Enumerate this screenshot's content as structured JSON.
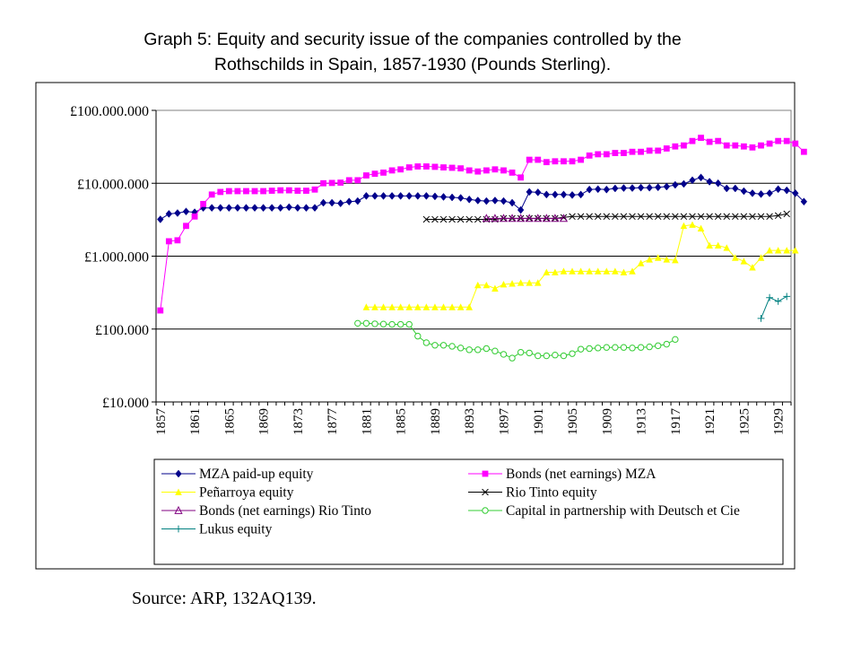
{
  "title_lines": [
    "Graph 5: Equity and security issue of the companies controlled by the",
    "Rothschilds in Spain, 1857-1930 (Pounds Sterling)."
  ],
  "source": "Source: ARP, 132AQ139.",
  "chart_data": {
    "type": "line",
    "title": "Graph 5: Equity and security issue of the companies controlled by the Rothschilds in Spain, 1857-1930 (Pounds Sterling).",
    "yscale": "log",
    "ylim": [
      10000,
      100000000
    ],
    "xlim": [
      1857,
      1930
    ],
    "y_ticks": [
      {
        "value": 100000000,
        "label": "£100.000.000"
      },
      {
        "value": 10000000,
        "label": "£10.000.000"
      },
      {
        "value": 1000000,
        "label": "£1.000.000"
      },
      {
        "value": 100000,
        "label": "£100.000"
      },
      {
        "value": 10000,
        "label": "£10.000"
      }
    ],
    "x_tick_labels": [
      "1857",
      "1861",
      "1865",
      "1869",
      "1873",
      "1877",
      "1881",
      "1885",
      "1889",
      "1893",
      "1897",
      "1901",
      "1905",
      "1909",
      "1913",
      "1917",
      "1921",
      "1925",
      "1929"
    ],
    "series": [
      {
        "name": "MZA paid-up equity",
        "color": "#00008B",
        "marker": "diamond",
        "start": 1857,
        "values": [
          3200000,
          3800000,
          3900000,
          4100000,
          4000000,
          4600000,
          4600000,
          4600000,
          4600000,
          4600000,
          4600000,
          4600000,
          4600000,
          4600000,
          4600000,
          4700000,
          4600000,
          4600000,
          4600000,
          5400000,
          5400000,
          5300000,
          5600000,
          5700000,
          6700000,
          6700000,
          6700000,
          6700000,
          6700000,
          6700000,
          6700000,
          6700000,
          6600000,
          6500000,
          6400000,
          6300000,
          6000000,
          5800000,
          5700000,
          5800000,
          5700000,
          5400000,
          4300000,
          7600000,
          7500000,
          7000000,
          7000000,
          7000000,
          6900000,
          7000000,
          8200000,
          8300000,
          8200000,
          8500000,
          8600000,
          8600000,
          8700000,
          8700000,
          8800000,
          9000000,
          9500000,
          9800000,
          11000000,
          12000000,
          10500000,
          10000000,
          8500000,
          8500000,
          7800000,
          7300000,
          7100000,
          7300000,
          8300000,
          8000000,
          7300000,
          5600000
        ]
      },
      {
        "name": "Bonds (net earnings) MZA",
        "color": "#FF00FF",
        "marker": "square",
        "start": 1857,
        "values": [
          180000,
          1600000,
          1650000,
          2600000,
          3500000,
          5200000,
          7000000,
          7600000,
          7800000,
          7800000,
          7800000,
          7800000,
          7800000,
          7900000,
          8000000,
          8000000,
          7900000,
          7900000,
          8200000,
          10000000,
          10100000,
          10200000,
          11000000,
          11000000,
          12800000,
          13500000,
          14000000,
          15000000,
          15500000,
          16500000,
          17000000,
          17000000,
          16800000,
          16500000,
          16300000,
          16000000,
          15000000,
          14500000,
          15000000,
          15500000,
          15000000,
          14000000,
          12000000,
          21000000,
          21000000,
          19500000,
          20000000,
          20000000,
          20000000,
          21000000,
          24000000,
          25000000,
          25000000,
          26000000,
          26000000,
          27000000,
          27000000,
          28000000,
          28000000,
          30000000,
          32000000,
          33000000,
          38000000,
          42000000,
          37000000,
          38000000,
          33000000,
          33000000,
          32000000,
          31000000,
          33000000,
          35000000,
          38000000,
          38000000,
          35000000,
          27000000
        ]
      },
      {
        "name": "Peñarroya equity",
        "color": "#FFFF00",
        "marker": "triangle",
        "start": 1881,
        "values": [
          200000,
          200000,
          200000,
          200000,
          200000,
          200000,
          200000,
          200000,
          200000,
          200000,
          200000,
          200000,
          200000,
          400000,
          400000,
          360000,
          410000,
          420000,
          430000,
          430000,
          430000,
          600000,
          600000,
          620000,
          620000,
          620000,
          620000,
          620000,
          620000,
          620000,
          600000,
          620000,
          800000,
          900000,
          950000,
          900000,
          880000,
          2600000,
          2700000,
          2400000,
          1400000,
          1400000,
          1300000,
          950000,
          850000,
          700000,
          950000,
          1200000,
          1200000,
          1200000,
          1200000
        ]
      },
      {
        "name": "Rio Tinto equity",
        "color": "#000000",
        "marker": "x",
        "start": 1888,
        "values": [
          3200000,
          3200000,
          3200000,
          3200000,
          3200000,
          3200000,
          3200000,
          3200000,
          3200000,
          3300000,
          3300000,
          3300000,
          3300000,
          3300000,
          3300000,
          3300000,
          3400000,
          3500000,
          3500000,
          3500000,
          3500000,
          3500000,
          3500000,
          3500000,
          3500000,
          3500000,
          3500000,
          3500000,
          3500000,
          3500000,
          3500000,
          3500000,
          3500000,
          3500000,
          3500000,
          3500000,
          3500000,
          3500000,
          3500000,
          3500000,
          3500000,
          3600000,
          3800000
        ]
      },
      {
        "name": "Bonds (net earnings) Rio Tinto",
        "color": "#800080",
        "marker": "triangle-open",
        "start": 1895,
        "values": [
          3300000,
          3300000,
          3300000,
          3300000,
          3300000,
          3300000,
          3300000,
          3300000,
          3300000,
          3300000
        ]
      },
      {
        "name": "Capital in partnership with Deutsch et Cie",
        "color": "#33CC33",
        "marker": "circle-open",
        "start": 1880,
        "values": [
          120000,
          120000,
          118000,
          117000,
          116000,
          116000,
          116000,
          80000,
          65000,
          60000,
          60000,
          58000,
          55000,
          52000,
          52000,
          54000,
          50000,
          45000,
          40000,
          48000,
          47000,
          43000,
          43000,
          44000,
          43000,
          46000,
          53000,
          54000,
          55000,
          56000,
          56000,
          56000,
          55000,
          56000,
          57000,
          59000,
          62000,
          72000
        ]
      },
      {
        "name": "Lukus equity",
        "color": "#008080",
        "marker": "plus",
        "start": 1927,
        "values": [
          140000,
          270000,
          240000,
          280000
        ]
      }
    ],
    "legend": {
      "placement": "bottom",
      "columns": 2
    },
    "grid": "horizontal major gridlines at each decade"
  }
}
